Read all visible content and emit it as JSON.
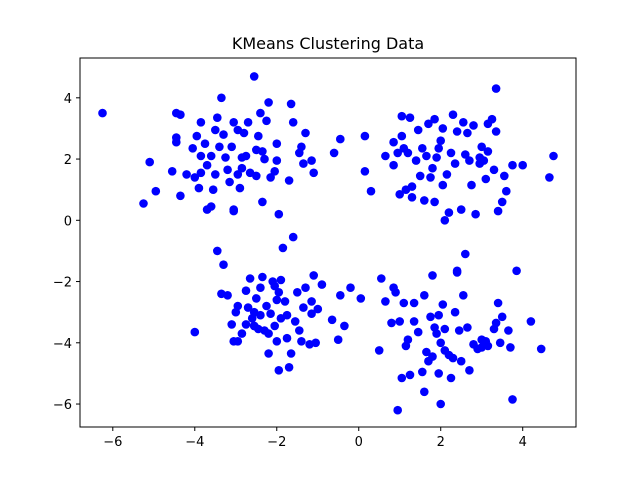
{
  "chart_data": {
    "type": "scatter",
    "title": "KMeans Clustering Data",
    "xlabel": "",
    "ylabel": "",
    "xlim": [
      -6.8,
      5.3
    ],
    "ylim": [
      -6.75,
      5.3
    ],
    "xticks": [
      -6,
      -4,
      -2,
      0,
      2,
      4
    ],
    "yticks": [
      -6,
      -4,
      -2,
      0,
      2,
      4
    ],
    "xtick_labels": [
      "−6",
      "−4",
      "−2",
      "0",
      "2",
      "4"
    ],
    "ytick_labels": [
      "−6",
      "−4",
      "−2",
      "0",
      "2",
      "4"
    ],
    "grid": false,
    "marker_color": "#0000ff",
    "series": [
      {
        "values": [
          [
            -6.25,
            3.5
          ],
          [
            -5.25,
            0.55
          ],
          [
            -5.1,
            1.9
          ],
          [
            -4.95,
            0.95
          ],
          [
            -4.55,
            1.6
          ],
          [
            -4.45,
            2.55
          ],
          [
            -4.45,
            2.7
          ],
          [
            -4.45,
            3.5
          ],
          [
            -4.35,
            3.45
          ],
          [
            -4.35,
            0.8
          ],
          [
            -4.2,
            1.5
          ],
          [
            -4.05,
            2.35
          ],
          [
            -4.0,
            1.4
          ],
          [
            -3.95,
            2.75
          ],
          [
            -3.9,
            1.05
          ],
          [
            -3.85,
            2.1
          ],
          [
            -3.85,
            1.55
          ],
          [
            -3.85,
            3.2
          ],
          [
            -3.75,
            2.5
          ],
          [
            -3.7,
            1.8
          ],
          [
            -3.7,
            0.35
          ],
          [
            -3.6,
            0.45
          ],
          [
            -3.6,
            2.1
          ],
          [
            -3.55,
            1.0
          ],
          [
            -3.5,
            1.5
          ],
          [
            -3.5,
            2.95
          ],
          [
            -3.45,
            3.35
          ],
          [
            -3.4,
            2.4
          ],
          [
            -3.35,
            4.0
          ],
          [
            -3.3,
            2.8
          ],
          [
            -3.25,
            2.05
          ],
          [
            -3.2,
            1.65
          ],
          [
            -3.15,
            1.25
          ],
          [
            -3.05,
            0.35
          ],
          [
            -3.05,
            0.3
          ],
          [
            -3.1,
            2.4
          ],
          [
            -3.05,
            3.2
          ],
          [
            -2.95,
            1.5
          ],
          [
            -2.95,
            2.95
          ],
          [
            -2.9,
            1.05
          ],
          [
            -2.85,
            1.7
          ],
          [
            -2.85,
            2.05
          ],
          [
            -2.8,
            2.85
          ],
          [
            -2.75,
            2.1
          ],
          [
            -2.7,
            3.2
          ],
          [
            -2.65,
            1.55
          ],
          [
            -2.55,
            4.7
          ],
          [
            -2.5,
            2.3
          ],
          [
            -2.5,
            1.45
          ],
          [
            -2.45,
            2.75
          ],
          [
            -2.4,
            3.5
          ],
          [
            -2.35,
            0.6
          ],
          [
            -2.35,
            2.25
          ],
          [
            -2.3,
            2.0
          ],
          [
            -2.25,
            3.25
          ],
          [
            -2.2,
            3.85
          ],
          [
            -2.15,
            1.4
          ],
          [
            -2.05,
            1.6
          ],
          [
            -2.0,
            1.95
          ],
          [
            -2.0,
            2.5
          ],
          [
            -1.95,
            0.2
          ],
          [
            -1.7,
            1.3
          ],
          [
            -1.65,
            3.8
          ],
          [
            -1.6,
            3.2
          ],
          [
            -1.45,
            2.2
          ],
          [
            -1.4,
            2.4
          ],
          [
            -1.35,
            1.85
          ],
          [
            -1.3,
            2.85
          ],
          [
            -1.15,
            1.95
          ],
          [
            -1.1,
            1.55
          ],
          [
            -0.6,
            2.2
          ],
          [
            -0.45,
            2.65
          ],
          [
            0.15,
            1.6
          ],
          [
            0.15,
            2.75
          ],
          [
            0.3,
            0.95
          ],
          [
            0.65,
            2.1
          ],
          [
            0.85,
            1.8
          ],
          [
            0.85,
            2.55
          ],
          [
            0.95,
            2.2
          ],
          [
            1.0,
            0.85
          ],
          [
            1.05,
            2.75
          ],
          [
            1.05,
            3.4
          ],
          [
            1.1,
            2.35
          ],
          [
            1.15,
            1.0
          ],
          [
            1.2,
            2.2
          ],
          [
            1.25,
            3.35
          ],
          [
            1.3,
            1.1
          ],
          [
            1.3,
            0.75
          ],
          [
            1.4,
            1.95
          ],
          [
            1.45,
            2.95
          ],
          [
            1.5,
            1.45
          ],
          [
            1.55,
            2.35
          ],
          [
            1.6,
            0.65
          ],
          [
            1.7,
            3.15
          ],
          [
            1.75,
            1.4
          ],
          [
            1.8,
            1.7
          ],
          [
            1.85,
            3.3
          ],
          [
            1.85,
            0.6
          ],
          [
            1.9,
            2.05
          ],
          [
            1.95,
            2.35
          ],
          [
            2.0,
            2.6
          ],
          [
            2.05,
            1.15
          ],
          [
            2.05,
            3.0
          ],
          [
            2.1,
            0.0
          ],
          [
            2.15,
            1.5
          ],
          [
            2.2,
            0.25
          ],
          [
            2.25,
            2.2
          ],
          [
            2.3,
            3.45
          ],
          [
            2.35,
            1.85
          ],
          [
            2.4,
            2.9
          ],
          [
            2.5,
            0.35
          ],
          [
            2.55,
            3.2
          ],
          [
            2.6,
            2.15
          ],
          [
            2.65,
            2.85
          ],
          [
            2.7,
            1.95
          ],
          [
            2.75,
            1.15
          ],
          [
            2.8,
            3.1
          ],
          [
            2.85,
            0.2
          ],
          [
            2.95,
            1.85
          ],
          [
            3.0,
            2.4
          ],
          [
            3.05,
            1.95
          ],
          [
            3.1,
            1.35
          ],
          [
            3.15,
            2.25
          ],
          [
            3.15,
            3.15
          ],
          [
            3.3,
            1.65
          ],
          [
            3.35,
            4.3
          ],
          [
            3.35,
            2.9
          ],
          [
            3.4,
            0.3
          ],
          [
            3.5,
            0.6
          ],
          [
            3.55,
            1.45
          ],
          [
            3.6,
            0.95
          ],
          [
            3.75,
            1.8
          ],
          [
            4.0,
            1.8
          ],
          [
            4.65,
            1.4
          ],
          [
            4.75,
            2.1
          ],
          [
            3.25,
            3.3
          ],
          [
            2.95,
            2.05
          ],
          [
            1.65,
            2.1
          ],
          [
            -4.0,
            -3.65
          ],
          [
            -3.45,
            -1.0
          ],
          [
            -3.35,
            -2.4
          ],
          [
            -3.3,
            -1.45
          ],
          [
            -3.2,
            -2.45
          ],
          [
            -3.1,
            -3.4
          ],
          [
            -3.0,
            -3.0
          ],
          [
            -2.95,
            -2.8
          ],
          [
            -2.95,
            -3.95
          ],
          [
            -2.85,
            -3.7
          ],
          [
            -2.75,
            -2.3
          ],
          [
            -2.7,
            -2.85
          ],
          [
            -2.65,
            -1.9
          ],
          [
            -2.6,
            -3.2
          ],
          [
            -2.55,
            -3.0
          ],
          [
            -2.55,
            -3.45
          ],
          [
            -2.5,
            -2.55
          ],
          [
            -2.45,
            -3.55
          ],
          [
            -2.4,
            -2.2
          ],
          [
            -2.4,
            -3.1
          ],
          [
            -2.35,
            -1.85
          ],
          [
            -2.3,
            -3.6
          ],
          [
            -2.25,
            -2.8
          ],
          [
            -2.2,
            -3.7
          ],
          [
            -2.2,
            -4.35
          ],
          [
            -2.15,
            -3.05
          ],
          [
            -2.1,
            -2.0
          ],
          [
            -2.05,
            -3.45
          ],
          [
            -2.0,
            -2.6
          ],
          [
            -2.0,
            -3.95
          ],
          [
            -1.95,
            -2.35
          ],
          [
            -1.95,
            -4.9
          ],
          [
            -1.9,
            -3.2
          ],
          [
            -1.9,
            -1.95
          ],
          [
            -1.85,
            -0.9
          ],
          [
            -1.8,
            -2.65
          ],
          [
            -1.75,
            -3.85
          ],
          [
            -1.7,
            -4.8
          ],
          [
            -1.65,
            -4.35
          ],
          [
            -1.6,
            -0.55
          ],
          [
            -1.55,
            -3.3
          ],
          [
            -1.5,
            -2.35
          ],
          [
            -1.45,
            -3.6
          ],
          [
            -1.4,
            -3.95
          ],
          [
            -1.35,
            -2.85
          ],
          [
            -1.3,
            -2.2
          ],
          [
            -1.2,
            -4.05
          ],
          [
            -1.15,
            -3.05
          ],
          [
            -1.15,
            -2.65
          ],
          [
            -1.1,
            -1.8
          ],
          [
            -1.05,
            -4.0
          ],
          [
            -1.0,
            -2.9
          ],
          [
            -0.9,
            -2.1
          ],
          [
            -0.65,
            -3.25
          ],
          [
            -0.5,
            -3.9
          ],
          [
            -0.45,
            -2.45
          ],
          [
            -0.35,
            -3.45
          ],
          [
            -0.2,
            -2.2
          ],
          [
            -2.75,
            -3.4
          ],
          [
            -2.55,
            -3.45
          ],
          [
            -3.05,
            -3.95
          ],
          [
            -2.05,
            -2.15
          ],
          [
            -1.75,
            -3.1
          ],
          [
            0.05,
            -2.55
          ],
          [
            0.5,
            -4.25
          ],
          [
            0.55,
            -1.9
          ],
          [
            0.65,
            -2.65
          ],
          [
            0.8,
            -3.35
          ],
          [
            0.85,
            -2.2
          ],
          [
            0.9,
            -2.35
          ],
          [
            0.95,
            -6.2
          ],
          [
            1.0,
            -3.3
          ],
          [
            1.05,
            -5.15
          ],
          [
            1.1,
            -2.7
          ],
          [
            1.15,
            -4.1
          ],
          [
            1.2,
            -3.9
          ],
          [
            1.25,
            -5.05
          ],
          [
            1.35,
            -2.7
          ],
          [
            1.35,
            -3.3
          ],
          [
            1.45,
            -3.65
          ],
          [
            1.55,
            -4.95
          ],
          [
            1.6,
            -5.6
          ],
          [
            1.6,
            -2.45
          ],
          [
            1.65,
            -4.3
          ],
          [
            1.7,
            -4.6
          ],
          [
            1.75,
            -3.15
          ],
          [
            1.8,
            -1.8
          ],
          [
            1.8,
            -4.45
          ],
          [
            1.85,
            -3.5
          ],
          [
            1.9,
            -3.7
          ],
          [
            1.95,
            -5.0
          ],
          [
            2.0,
            -4.0
          ],
          [
            2.0,
            -6.0
          ],
          [
            2.05,
            -2.75
          ],
          [
            2.1,
            -3.55
          ],
          [
            2.2,
            -4.4
          ],
          [
            2.25,
            -5.15
          ],
          [
            2.3,
            -4.5
          ],
          [
            2.35,
            -3.0
          ],
          [
            2.4,
            -1.65
          ],
          [
            2.45,
            -3.6
          ],
          [
            2.5,
            -4.6
          ],
          [
            2.55,
            -2.45
          ],
          [
            2.6,
            -1.1
          ],
          [
            2.65,
            -3.5
          ],
          [
            2.7,
            -4.9
          ],
          [
            2.8,
            -4.05
          ],
          [
            2.9,
            -4.2
          ],
          [
            3.0,
            -3.9
          ],
          [
            3.1,
            -3.95
          ],
          [
            3.15,
            -4.1
          ],
          [
            3.3,
            -3.55
          ],
          [
            3.35,
            -3.35
          ],
          [
            3.4,
            -2.7
          ],
          [
            3.45,
            -4.0
          ],
          [
            3.5,
            -3.15
          ],
          [
            3.65,
            -3.6
          ],
          [
            3.7,
            -4.15
          ],
          [
            3.75,
            -5.85
          ],
          [
            3.85,
            -1.65
          ],
          [
            4.2,
            -3.3
          ],
          [
            4.45,
            -4.2
          ],
          [
            2.4,
            -1.7
          ],
          [
            1.95,
            -3.1
          ],
          [
            3.0,
            -4.15
          ],
          [
            2.1,
            -4.25
          ]
        ]
      }
    ]
  }
}
